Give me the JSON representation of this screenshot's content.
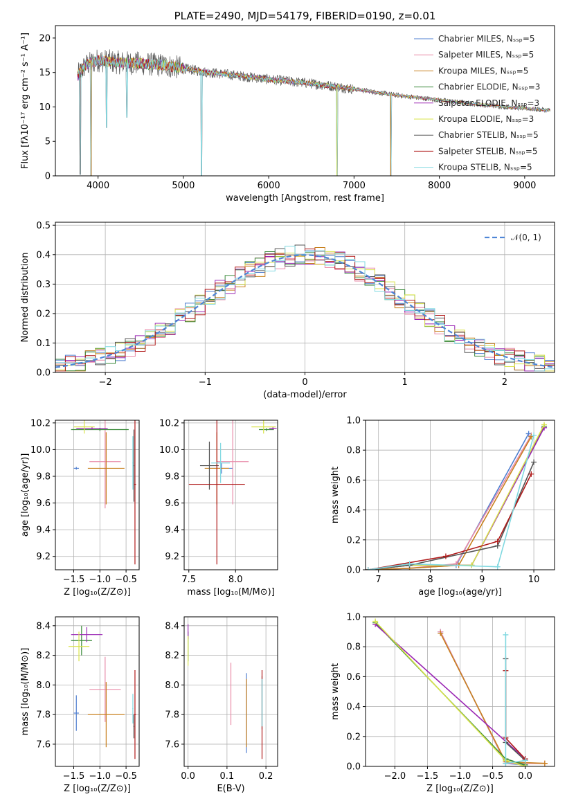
{
  "colors": [
    "#4f7fd0",
    "#e88aa8",
    "#c8801e",
    "#3a8a3a",
    "#9a26b4",
    "#d9e34a",
    "#555555",
    "#b01a1a",
    "#7fd8e0"
  ],
  "chart_data": [
    {
      "id": "spectrum",
      "type": "line",
      "title": "PLATE=2490, MJD=54179, FIBERID=0190, z=0.01",
      "xlabel": "wavelength [Angstrom, rest frame]",
      "ylabel": "Flux [fλ10⁻¹⁷ erg cm⁻² s⁻¹ A⁻¹]",
      "xlim": [
        3500,
        9350
      ],
      "ylim": [
        0,
        21.8
      ],
      "xticks": [
        4000,
        5000,
        6000,
        7000,
        8000,
        9000
      ],
      "yticks": [
        0,
        5,
        10,
        15,
        20
      ],
      "grid": false,
      "legend_position": "top-right",
      "legend": [
        "Chabrier MILES, Nₛₛₚ=5",
        "Salpeter MILES, Nₛₛₚ=5",
        "Kroupa MILES, Nₛₛₚ=5",
        "Chabrier ELODIE, Nₛₛₚ=3",
        "Salpeter ELODIE, Nₛₛₚ=3",
        "Kroupa ELODIE, Nₛₛₚ=3",
        "Chabrier STELIB, Nₛₛₚ=5",
        "Salpeter STELIB, Nₛₛₚ=5",
        "Kroupa STELIB, Nₛₛₚ=5"
      ],
      "continuum": {
        "x": [
          3760,
          3850,
          4000,
          4200,
          4500,
          4800,
          5000,
          5300,
          5600,
          6000,
          6500,
          7000,
          7500,
          8000,
          8500,
          9000,
          9300
        ],
        "y": [
          14.5,
          16.0,
          16.8,
          16.5,
          16.3,
          16.0,
          15.6,
          15.0,
          14.6,
          14.0,
          13.4,
          12.6,
          11.7,
          11.0,
          10.3,
          9.8,
          9.5
        ]
      },
      "dips": [
        {
          "x": 3790,
          "y": 0.2
        },
        {
          "x": 3920,
          "y": 0.0
        },
        {
          "x": 4100,
          "y": 7.0
        },
        {
          "x": 4340,
          "y": 8.5
        },
        {
          "x": 5210,
          "y": 0.0
        },
        {
          "x": 6800,
          "y": 0.0
        },
        {
          "x": 7430,
          "y": 0.0
        }
      ]
    },
    {
      "id": "residuals",
      "type": "line",
      "xlabel": "(data-model)/error",
      "ylabel": "Normed distribution",
      "xlim": [
        -2.5,
        2.5
      ],
      "ylim": [
        0,
        0.51
      ],
      "xticks": [
        -2,
        -1,
        0,
        1,
        2
      ],
      "yticks": [
        0.0,
        0.1,
        0.2,
        0.3,
        0.4,
        0.5
      ],
      "grid": true,
      "legend_position": "top-right",
      "legend": [
        "𝒩(0, 1)"
      ],
      "gaussian": {
        "mean": 0,
        "sigma": 1
      }
    },
    {
      "id": "age-vs-z",
      "type": "scatter",
      "xlabel": "Z [log₁₀(Z/Z⊙)]",
      "ylabel": "age  [log₁₀(age/yr)]",
      "xlim": [
        -1.85,
        -0.25
      ],
      "ylim": [
        9.1,
        10.22
      ],
      "xticks": [
        -1.5,
        -1.0,
        -0.5
      ],
      "yticks": [
        9.2,
        9.4,
        9.6,
        9.8,
        10.0,
        10.2
      ],
      "grid": true,
      "points": [
        {
          "x": -1.45,
          "y": 9.86,
          "xerr": 0.05,
          "yerr": 0.01
        },
        {
          "x": -0.9,
          "y": 9.91,
          "xerr": 0.3,
          "yerr": 0.35
        },
        {
          "x": -0.88,
          "y": 9.86,
          "xerr": 0.35,
          "yerr": 0.27
        },
        {
          "x": -1.0,
          "y": 10.15,
          "xerr": 0.55,
          "yerr": 0.01
        },
        {
          "x": -1.15,
          "y": 10.16,
          "xerr": 0.3,
          "yerr": 0.01
        },
        {
          "x": -1.3,
          "y": 10.17,
          "xerr": 0.2,
          "yerr": 0.05
        },
        {
          "x": -0.35,
          "y": 9.88,
          "xerr": 0.01,
          "yerr": 0.27
        },
        {
          "x": -0.33,
          "y": 9.74,
          "xerr": 0.02,
          "yerr": 0.6
        },
        {
          "x": -0.37,
          "y": 9.9,
          "xerr": 0.01,
          "yerr": 0.2
        }
      ]
    },
    {
      "id": "age-vs-mass",
      "type": "scatter",
      "xlabel": "mass [log₁₀(M/M⊙)]",
      "ylabel": "",
      "xlim": [
        7.45,
        8.45
      ],
      "ylim": [
        9.1,
        10.22
      ],
      "xticks": [
        7.5,
        8.0
      ],
      "yticks": [
        9.2,
        9.4,
        9.6,
        9.8,
        10.0,
        10.2
      ],
      "grid": true,
      "points": [
        {
          "x": 7.85,
          "y": 9.86,
          "xerr": 0.12,
          "yerr": 0.04
        },
        {
          "x": 7.97,
          "y": 9.91,
          "xerr": 0.17,
          "yerr": 0.32
        },
        {
          "x": 7.8,
          "y": 9.86,
          "xerr": 0.13,
          "yerr": 0.27
        },
        {
          "x": 8.33,
          "y": 10.15,
          "xerr": 0.08,
          "yerr": 0.01
        },
        {
          "x": 8.4,
          "y": 10.16,
          "xerr": 0.04,
          "yerr": 0.01
        },
        {
          "x": 8.3,
          "y": 10.17,
          "xerr": 0.13,
          "yerr": 0.05
        },
        {
          "x": 7.72,
          "y": 9.88,
          "xerr": 0.1,
          "yerr": 0.18
        },
        {
          "x": 7.8,
          "y": 9.74,
          "xerr": 0.3,
          "yerr": 0.6
        },
        {
          "x": 7.84,
          "y": 9.9,
          "xerr": 0.1,
          "yerr": 0.15
        }
      ]
    },
    {
      "id": "mw-vs-age",
      "type": "line",
      "xlabel": "age  [log₁₀(age/yr)]",
      "ylabel": "mass weight",
      "xlim": [
        6.75,
        10.4
      ],
      "ylim": [
        0,
        1.0
      ],
      "xticks": [
        7,
        8,
        9,
        10
      ],
      "yticks": [
        0.0,
        0.2,
        0.4,
        0.6,
        0.8,
        1.0
      ],
      "grid": true,
      "series": [
        {
          "x": [
            6.8,
            7.6,
            8.5,
            9.9
          ],
          "y": [
            0.0,
            0.01,
            0.03,
            0.91
          ]
        },
        {
          "x": [
            6.8,
            7.6,
            8.5,
            9.95
          ],
          "y": [
            0.0,
            0.01,
            0.04,
            0.9
          ]
        },
        {
          "x": [
            6.8,
            7.6,
            8.55,
            9.95
          ],
          "y": [
            0.0,
            0.01,
            0.03,
            0.89
          ]
        },
        {
          "x": [
            6.8,
            7.6,
            8.8,
            10.2
          ],
          "y": [
            0.0,
            0.03,
            0.03,
            0.96
          ]
        },
        {
          "x": [
            6.8,
            7.6,
            8.8,
            10.2
          ],
          "y": [
            0.0,
            0.03,
            0.03,
            0.95
          ]
        },
        {
          "x": [
            6.8,
            7.6,
            8.8,
            10.2
          ],
          "y": [
            0.0,
            0.03,
            0.03,
            0.97
          ]
        },
        {
          "x": [
            6.8,
            7.6,
            9.3,
            10.0
          ],
          "y": [
            0.0,
            0.03,
            0.16,
            0.72
          ]
        },
        {
          "x": [
            6.8,
            8.3,
            9.3,
            9.95
          ],
          "y": [
            0.0,
            0.09,
            0.19,
            0.64
          ]
        },
        {
          "x": [
            6.8,
            7.6,
            9.3,
            10.0
          ],
          "y": [
            0.0,
            0.04,
            0.02,
            0.9
          ]
        }
      ]
    },
    {
      "id": "mass-vs-z",
      "type": "scatter",
      "xlabel": "Z [log₁₀(Z/Z⊙)]",
      "ylabel": "mass [log₁₀(M/M⊙)]",
      "xlim": [
        -1.85,
        -0.25
      ],
      "ylim": [
        7.45,
        8.46
      ],
      "xticks": [
        -1.5,
        -1.0,
        -0.5
      ],
      "yticks": [
        7.6,
        7.8,
        8.0,
        8.2,
        8.4
      ],
      "grid": true,
      "points": [
        {
          "x": -1.45,
          "y": 7.81,
          "xerr": 0.05,
          "yerr": 0.12
        },
        {
          "x": -0.9,
          "y": 7.97,
          "xerr": 0.3,
          "yerr": 0.22
        },
        {
          "x": -0.88,
          "y": 7.8,
          "xerr": 0.35,
          "yerr": 0.22
        },
        {
          "x": -1.35,
          "y": 8.3,
          "xerr": 0.2,
          "yerr": 0.1
        },
        {
          "x": -1.25,
          "y": 8.34,
          "xerr": 0.3,
          "yerr": 0.05
        },
        {
          "x": -1.4,
          "y": 8.26,
          "xerr": 0.2,
          "yerr": 0.1
        },
        {
          "x": -0.35,
          "y": 7.72,
          "xerr": 0.01,
          "yerr": 0.08
        },
        {
          "x": -0.33,
          "y": 7.8,
          "xerr": 0.02,
          "yerr": 0.3
        },
        {
          "x": -0.37,
          "y": 7.84,
          "xerr": 0.01,
          "yerr": 0.1
        }
      ]
    },
    {
      "id": "mass-vs-ebv",
      "type": "scatter",
      "xlabel": "E(B-V)",
      "ylabel": "",
      "xlim": [
        -0.01,
        0.23
      ],
      "ylim": [
        7.45,
        8.46
      ],
      "xticks": [
        0.0,
        0.1,
        0.2
      ],
      "yticks": [
        7.6,
        7.8,
        8.0,
        8.2,
        8.4
      ],
      "grid": true,
      "points": [
        {
          "x": 0.15,
          "y": 7.81,
          "xerr": 0.0,
          "yerr": 0.27
        },
        {
          "x": 0.11,
          "y": 7.94,
          "xerr": 0.0,
          "yerr": 0.21
        },
        {
          "x": 0.15,
          "y": 7.81,
          "xerr": 0.0,
          "yerr": 0.23
        },
        {
          "x": 0.0,
          "y": 8.26,
          "xerr": 0.0,
          "yerr": 0.1
        },
        {
          "x": 0.0,
          "y": 8.36,
          "xerr": 0.0,
          "yerr": 0.05
        },
        {
          "x": 0.0,
          "y": 8.23,
          "xerr": 0.0,
          "yerr": 0.1
        },
        {
          "x": 0.19,
          "y": 7.88,
          "xerr": 0.0,
          "yerr": 0.18
        },
        {
          "x": 0.19,
          "y": 7.8,
          "xerr": 0.0,
          "yerr": 0.3
        },
        {
          "x": 0.19,
          "y": 7.88,
          "xerr": 0.0,
          "yerr": 0.16
        }
      ]
    },
    {
      "id": "mw-vs-z",
      "type": "line",
      "xlabel": "Z [log₁₀(Z/Z⊙)]",
      "ylabel": "mass weight",
      "xlim": [
        -2.45,
        0.45
      ],
      "ylim": [
        0,
        1.0
      ],
      "xticks": [
        -2.0,
        -1.5,
        -1.0,
        -0.5,
        0.0
      ],
      "yticks": [
        0.0,
        0.2,
        0.4,
        0.6,
        0.8,
        1.0
      ],
      "grid": true,
      "series": [
        {
          "x": [
            -1.3,
            -0.3,
            0.0
          ],
          "y": [
            0.9,
            0.02,
            0.01
          ]
        },
        {
          "x": [
            -1.3,
            -0.3,
            0.3
          ],
          "y": [
            0.9,
            0.02,
            0.02
          ]
        },
        {
          "x": [
            -1.3,
            -0.3,
            0.3
          ],
          "y": [
            0.89,
            0.03,
            0.02
          ]
        },
        {
          "x": [
            -2.3,
            -0.3,
            0.0
          ],
          "y": [
            0.96,
            0.05,
            0.01
          ]
        },
        {
          "x": [
            -2.3,
            0.0
          ],
          "y": [
            0.95,
            0.05
          ]
        },
        {
          "x": [
            -2.3,
            -0.3,
            0.0
          ],
          "y": [
            0.97,
            0.04,
            0.0
          ]
        },
        {
          "x": [
            -0.3,
            -0.3,
            0.0
          ],
          "y": [
            0.72,
            0.16,
            0.04
          ]
        },
        {
          "x": [
            -0.3,
            -0.3,
            0.0
          ],
          "y": [
            0.64,
            0.19,
            0.05
          ]
        },
        {
          "x": [
            -0.3,
            -0.3,
            0.0
          ],
          "y": [
            0.88,
            0.02,
            0.04
          ]
        }
      ]
    }
  ]
}
